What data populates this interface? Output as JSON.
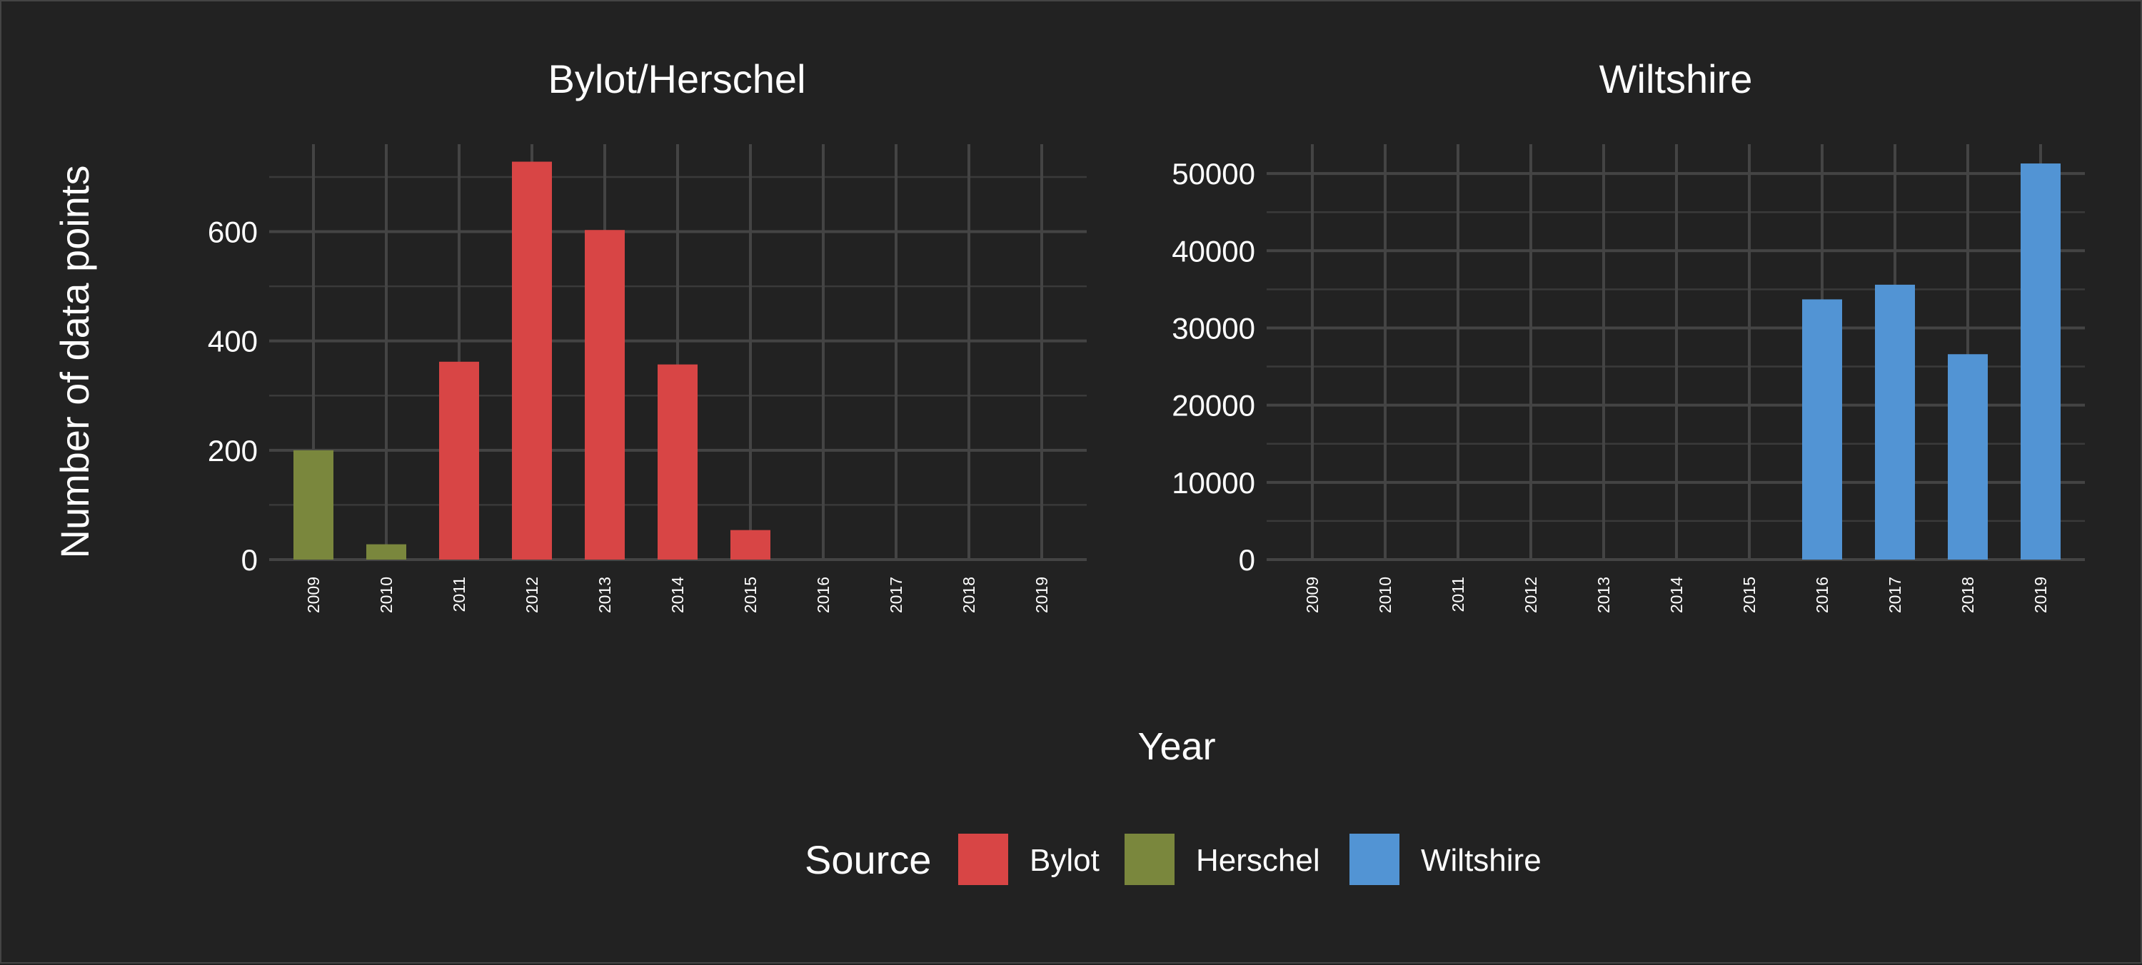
{
  "chart_data": {
    "type": "bar",
    "xlabel": "Year",
    "ylabel": "Number of data points",
    "legend": {
      "title": "Source",
      "placement": "bottom",
      "entries": [
        {
          "name": "Bylot",
          "color": "#d84545"
        },
        {
          "name": "Herschel",
          "color": "#7a873d"
        },
        {
          "name": "Wiltshire",
          "color": "#5294d4"
        }
      ]
    },
    "grid": true,
    "panels": [
      {
        "title": "Bylot/Herschel",
        "categories": [
          "2009",
          "2010",
          "2011",
          "2012",
          "2013",
          "2014",
          "2015",
          "2016",
          "2017",
          "2018",
          "2019"
        ],
        "ylim": [
          0,
          760
        ],
        "yticks": [
          0,
          200,
          400,
          600
        ],
        "series": [
          {
            "name": "Herschel",
            "values": [
              200,
              28,
              0,
              0,
              0,
              0,
              0,
              0,
              0,
              0,
              0
            ]
          },
          {
            "name": "Bylot",
            "values": [
              0,
              0,
              362,
              728,
              603,
              357,
              54,
              0,
              0,
              0,
              0
            ]
          }
        ]
      },
      {
        "title": "Wiltshire",
        "categories": [
          "2009",
          "2010",
          "2011",
          "2012",
          "2013",
          "2014",
          "2015",
          "2016",
          "2017",
          "2018",
          "2019"
        ],
        "ylim": [
          0,
          53800
        ],
        "yticks": [
          0,
          10000,
          20000,
          30000,
          40000,
          50000
        ],
        "series": [
          {
            "name": "Wiltshire",
            "values": [
              0,
              0,
              0,
              0,
              0,
              0,
              0,
              33700,
              35600,
              26600,
              51300
            ]
          }
        ]
      }
    ]
  }
}
